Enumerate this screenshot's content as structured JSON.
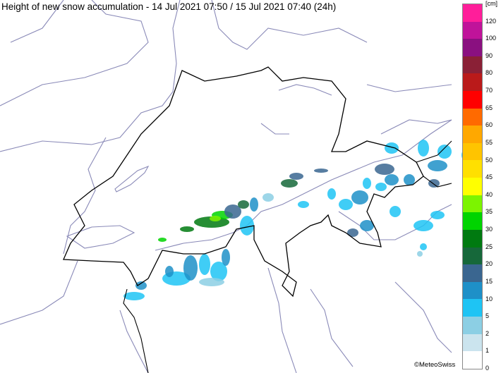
{
  "title": "Height of new snow accumulation - 14 Jul 2021 07:50 / 15 Jul 2021 07:40 (24h)",
  "copyright": "©MeteoSwiss",
  "legend": {
    "unit": "[cm]",
    "labels": [
      "120",
      "100",
      "90",
      "80",
      "70",
      "65",
      "60",
      "55",
      "50",
      "45",
      "40",
      "35",
      "30",
      "25",
      "20",
      "15",
      "10",
      "5",
      "2",
      "1",
      "0"
    ],
    "colors": [
      "#ff1e9a",
      "#c0139a",
      "#8a1080",
      "#8a2036",
      "#ba1a1a",
      "#ff0000",
      "#ff6a00",
      "#ffa800",
      "#ffc400",
      "#ffe000",
      "#ffff00",
      "#7cf400",
      "#00d400",
      "#007a10",
      "#16683a",
      "#3a6690",
      "#1e90c8",
      "#1ec4f4",
      "#8ccfe4",
      "#cbe4ee",
      "#ffffff"
    ]
  }
}
